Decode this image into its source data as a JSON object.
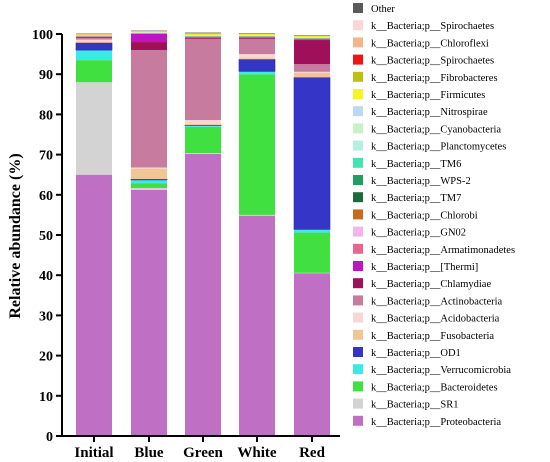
{
  "chart_data": {
    "type": "bar",
    "stacked": true,
    "title": "",
    "xlabel": "",
    "ylabel": "Relative abundance (%)",
    "ylim": [
      0,
      100
    ],
    "yticks": [
      0,
      10,
      20,
      30,
      40,
      50,
      60,
      70,
      80,
      90,
      100
    ],
    "legend_position": "right",
    "categories": [
      "Initial",
      "Blue",
      "Green",
      "White",
      "Red"
    ],
    "series": [
      {
        "name": "k__Bacteria;p__Proteobacteria",
        "color": "#bf6fc4",
        "values": [
          65.0,
          61.2,
          70.2,
          54.8,
          40.5
        ]
      },
      {
        "name": "k__Bacteria;p__SR1",
        "color": "#d3d3d3",
        "values": [
          23.0,
          0.5,
          0.2,
          0.2,
          0.1
        ]
      },
      {
        "name": "k__Bacteria;p__Bacteroidetes",
        "color": "#3fe03f",
        "values": [
          5.5,
          1.2,
          6.5,
          35.0,
          10.0
        ]
      },
      {
        "name": "k__Bacteria;p__Verrucomicrobia",
        "color": "#3de8e8",
        "values": [
          2.5,
          0.8,
          0.3,
          0.7,
          0.8
        ]
      },
      {
        "name": "k__Bacteria;p__OD1",
        "color": "#3535c8",
        "values": [
          1.8,
          0.2,
          0.1,
          3.0,
          37.8
        ]
      },
      {
        "name": "k__Bacteria;p__Fusobacteria",
        "color": "#f3c596",
        "values": [
          0.3,
          2.6,
          0.3,
          0.3,
          1.1
        ]
      },
      {
        "name": "k__Bacteria;p__Acidobacteria",
        "color": "#f9d6d6",
        "values": [
          0.5,
          0.3,
          1.0,
          1.0,
          0.3
        ]
      },
      {
        "name": "k__Bacteria;p__Actinobacteria",
        "color": "#c77b9e",
        "values": [
          0.4,
          29.2,
          20.2,
          3.8,
          1.9
        ]
      },
      {
        "name": "k__Bacteria;p__Chlamydiae",
        "color": "#a0105a",
        "values": [
          0.2,
          2.0,
          0.3,
          0.3,
          6.0
        ]
      },
      {
        "name": "k__Bacteria;p__[Thermi]",
        "color": "#c014c4",
        "values": [
          0.1,
          2.0,
          0.1,
          0.1,
          0.2
        ]
      },
      {
        "name": "k__Bacteria;p__Armatimonadetes",
        "color": "#e86590",
        "values": [
          0.05,
          0.05,
          0.05,
          0.05,
          0.05
        ]
      },
      {
        "name": "k__Bacteria;p__GN02",
        "color": "#f3b5ea",
        "values": [
          0.05,
          0.05,
          0.05,
          0.05,
          0.05
        ]
      },
      {
        "name": "k__Bacteria;p__Chlorobi",
        "color": "#c76a1d",
        "values": [
          0.05,
          0.05,
          0.05,
          0.05,
          0.05
        ]
      },
      {
        "name": "k__Bacteria;p__TM7",
        "color": "#1b6b3a",
        "values": [
          0.05,
          0.05,
          0.05,
          0.05,
          0.05
        ]
      },
      {
        "name": "k__Bacteria;p__WPS-2",
        "color": "#1f9e5e",
        "values": [
          0.05,
          0.05,
          0.05,
          0.05,
          0.05
        ]
      },
      {
        "name": "k__Bacteria;p__TM6",
        "color": "#45e3b0",
        "values": [
          0.05,
          0.05,
          0.05,
          0.05,
          0.05
        ]
      },
      {
        "name": "k__Bacteria;p__Planctomycetes",
        "color": "#b3f0df",
        "values": [
          0.05,
          0.05,
          0.05,
          0.05,
          0.05
        ]
      },
      {
        "name": "k__Bacteria;p__Cyanobacteria",
        "color": "#c6f2c6",
        "values": [
          0.05,
          0.05,
          0.05,
          0.05,
          0.05
        ]
      },
      {
        "name": "k__Bacteria;p__Nitrospirae",
        "color": "#bcd8f2",
        "values": [
          0.05,
          0.05,
          0.05,
          0.05,
          0.05
        ]
      },
      {
        "name": "k__Bacteria;p__Firmicutes",
        "color": "#f5f51f",
        "values": [
          0.1,
          0.1,
          0.3,
          0.3,
          0.3
        ]
      },
      {
        "name": "k__Bacteria;p__Fibrobacteres",
        "color": "#bebe14",
        "values": [
          0.05,
          0.05,
          0.2,
          0.05,
          0.05
        ]
      },
      {
        "name": "k__Bacteria;p__Spirochaetes",
        "color": "#f01414",
        "values": [
          0.05,
          0.05,
          0.05,
          0.05,
          0.05
        ]
      },
      {
        "name": "k__Bacteria;p__Chloroflexi",
        "color": "#f0b68a",
        "values": [
          0.05,
          0.05,
          0.05,
          0.05,
          0.05
        ]
      },
      {
        "name": "k__Bacteria;p__Spirochaetes",
        "color": "#fad6d6",
        "values": [
          0.05,
          0.05,
          0.05,
          0.05,
          0.05
        ]
      },
      {
        "name": "Other",
        "color": "#5a5a5a",
        "values": [
          0.1,
          0.1,
          0.1,
          0.1,
          0.1
        ]
      }
    ]
  }
}
